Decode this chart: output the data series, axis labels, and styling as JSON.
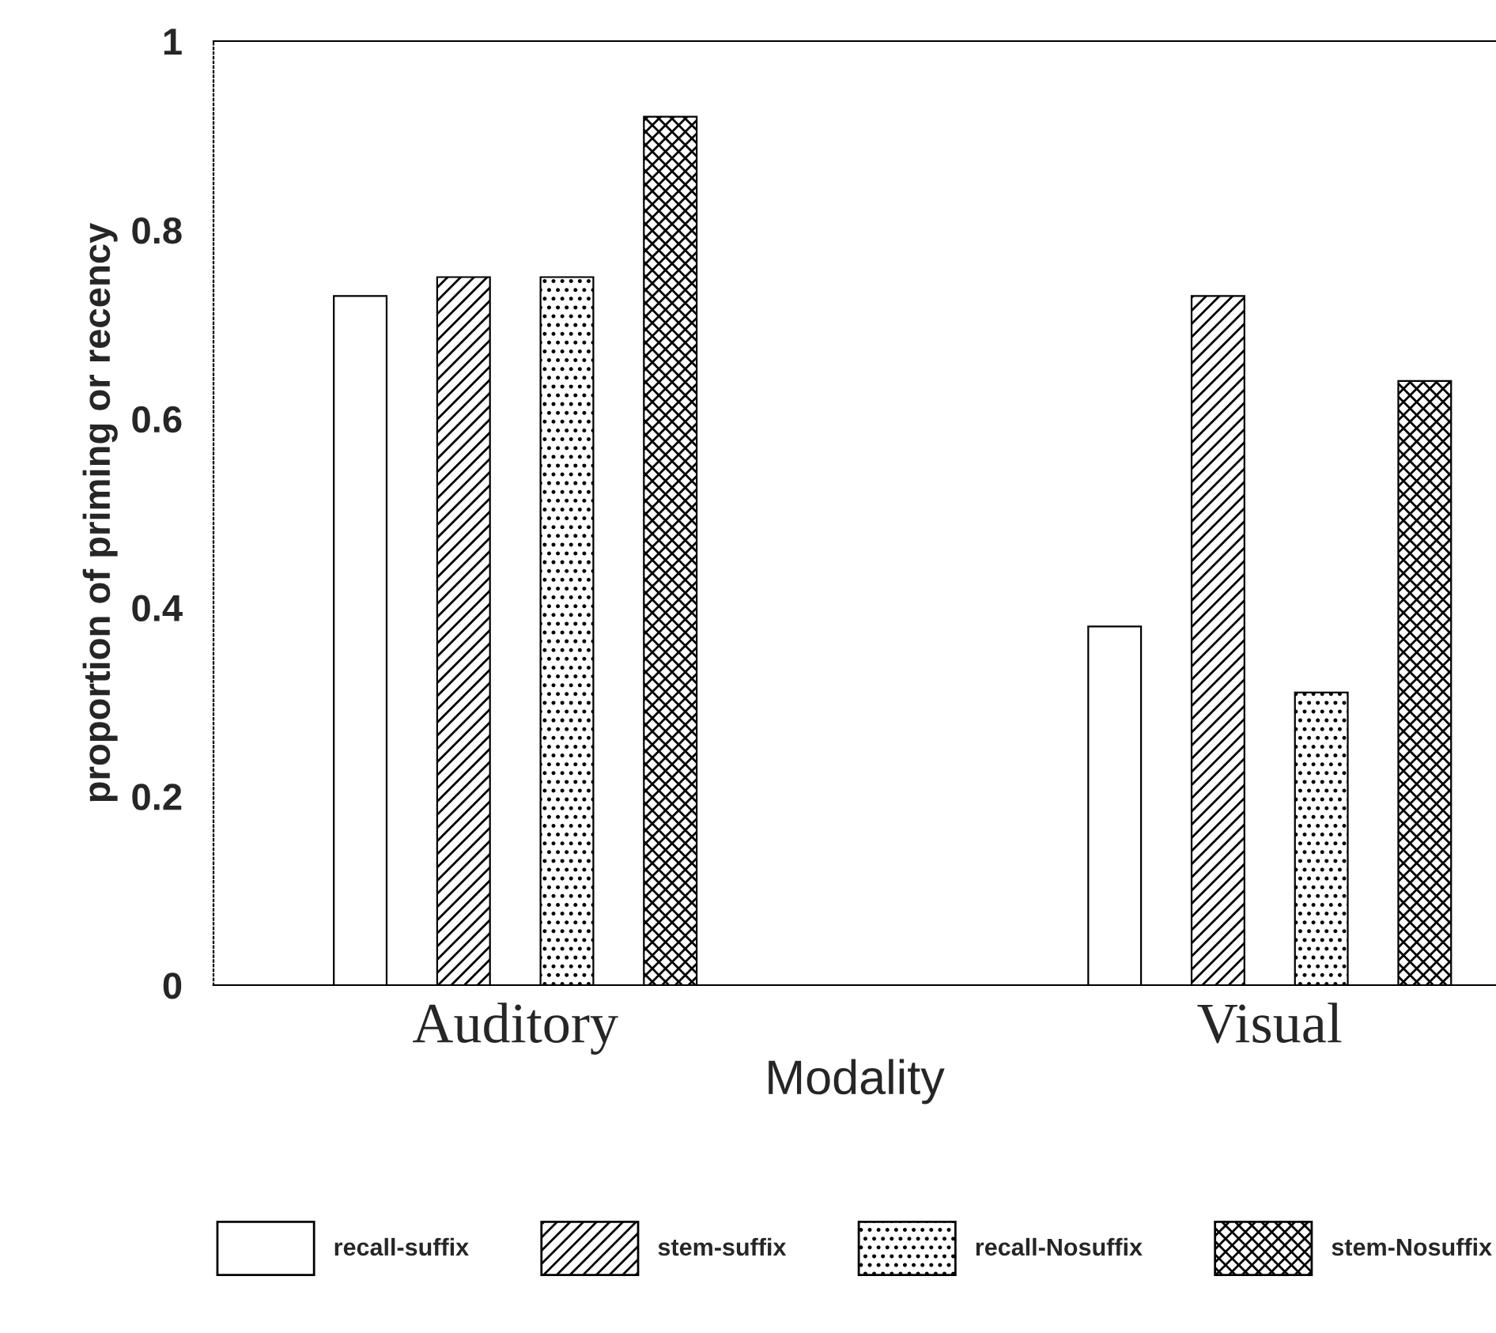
{
  "chart_data": {
    "type": "bar",
    "xlabel": "Modality",
    "ylabel": "proportion of priming or recency",
    "categories": [
      "Auditory",
      "Visual"
    ],
    "series": [
      {
        "name": "recall-suffix",
        "color": "#ffffff",
        "values": [
          0.73,
          0.38
        ]
      },
      {
        "name": "stem-suffix",
        "color": "#000000",
        "values": [
          0.75,
          0.73
        ]
      },
      {
        "name": "recall-Nosuffix",
        "color": "#000000",
        "values": [
          0.75,
          0.31
        ]
      },
      {
        "name": "stem-Nosuffix",
        "color": "#000000",
        "values": [
          0.92,
          0.64
        ]
      }
    ],
    "ylim": [
      0,
      1
    ],
    "yticks": [
      0,
      0.2,
      0.4,
      0.6,
      0.8,
      1
    ],
    "grid": false,
    "legend": "bottom"
  }
}
